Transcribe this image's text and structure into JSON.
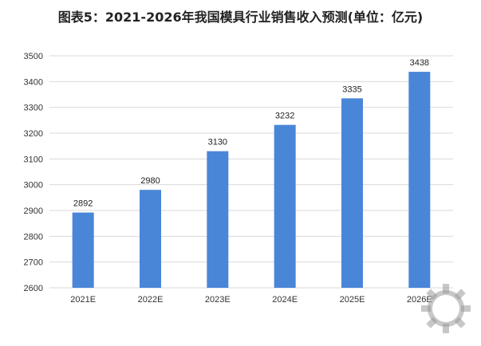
{
  "chart_data": {
    "type": "bar",
    "title": "图表5：2021-2026年我国模具行业销售收入预测(单位：亿元)",
    "categories": [
      "2021E",
      "2022E",
      "2023E",
      "2024E",
      "2025E",
      "2026E"
    ],
    "values": [
      2892,
      2980,
      3130,
      3232,
      3335,
      3438
    ],
    "ylim": [
      2600,
      3500
    ],
    "yticks": [
      2600,
      2700,
      2800,
      2900,
      3000,
      3100,
      3200,
      3300,
      3400,
      3500
    ],
    "grid": true,
    "legend": "none",
    "bar_color": "#4a86d8"
  },
  "watermark": {
    "icon": "gear-icon"
  }
}
